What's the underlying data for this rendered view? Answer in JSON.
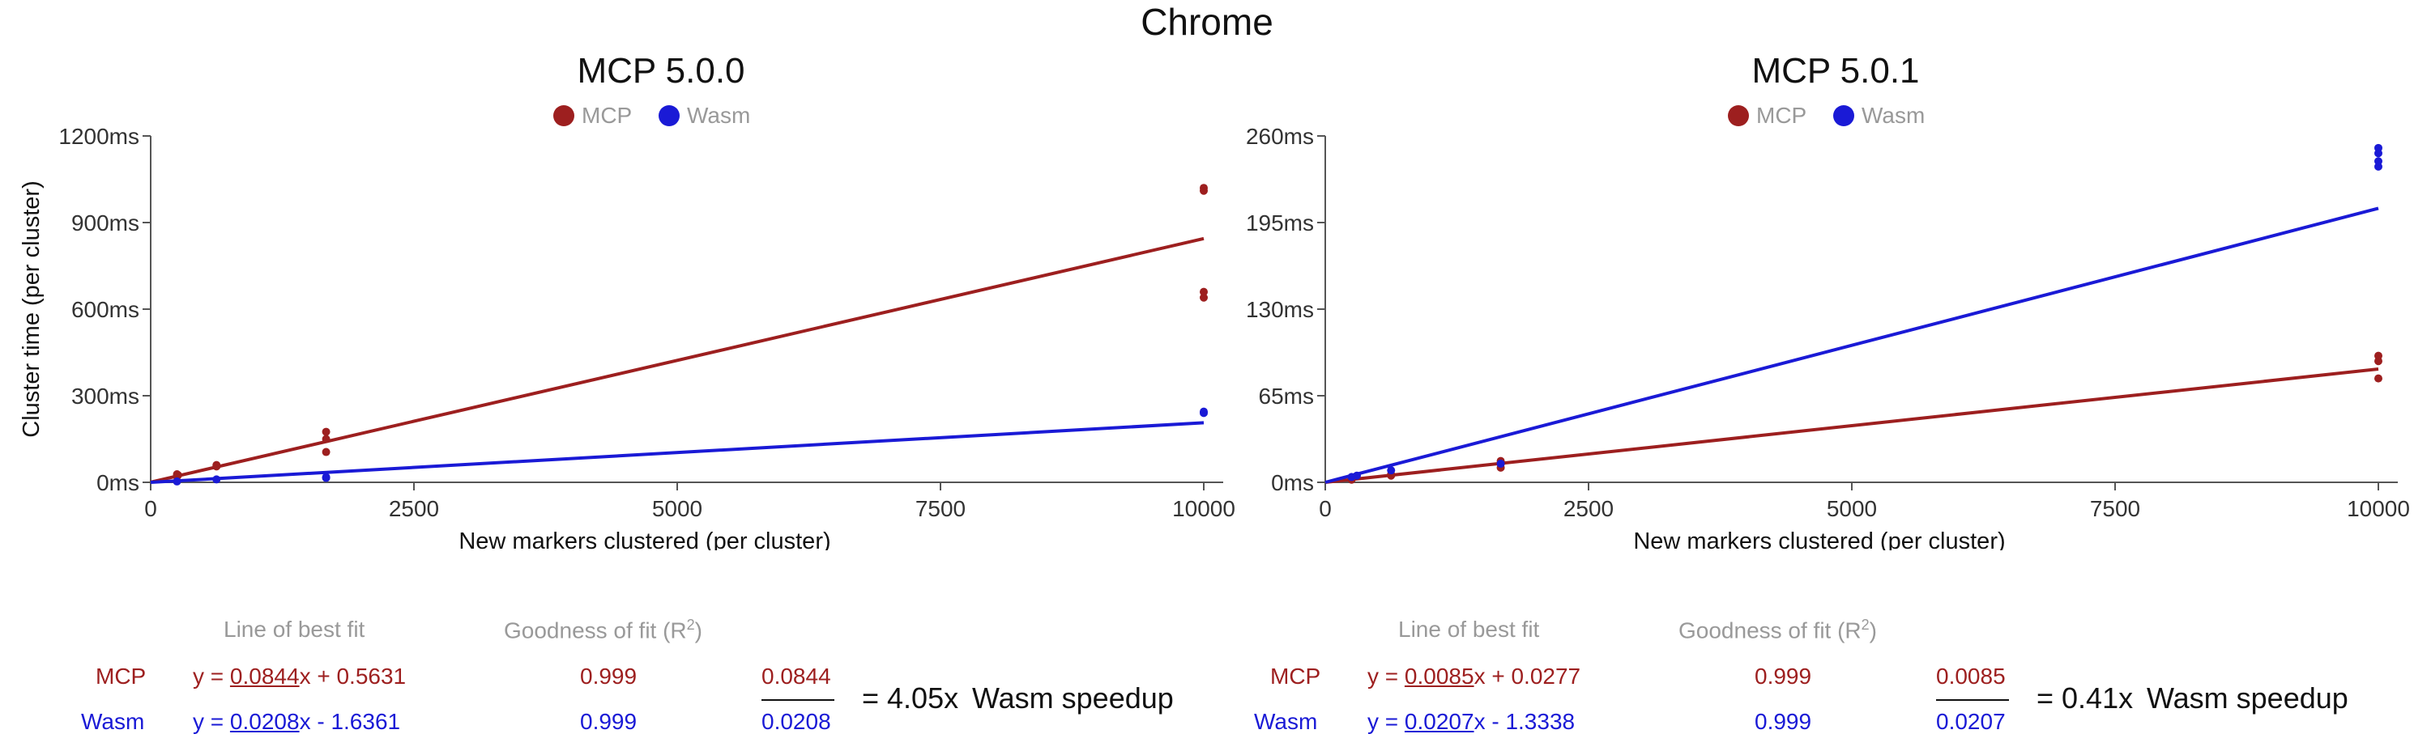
{
  "title": "Chrome",
  "colors": {
    "mcp": "#9d1f1f",
    "wasm": "#1a1ad6",
    "axis": "#555555",
    "header": "#999999"
  },
  "chart_data": [
    {
      "type": "scatter",
      "title": "MCP 5.0.0",
      "legend": {
        "placement": "top-center",
        "entries": [
          "MCP",
          "Wasm"
        ]
      },
      "xlabel": "New markers clustered (per cluster)",
      "ylabel": "Cluster time (per cluster)",
      "xlim": [
        0,
        10000
      ],
      "ylim": [
        0,
        1200
      ],
      "xticks": [
        0,
        2500,
        5000,
        7500,
        10000
      ],
      "yticks": [
        0,
        300,
        600,
        900,
        1200
      ],
      "ytick_labels": [
        "0ms",
        "300ms",
        "600ms",
        "900ms",
        "1200ms"
      ],
      "grid": false,
      "series": [
        {
          "name": "MCP",
          "color": "#9d1f1f",
          "points": [
            [
              250,
              20
            ],
            [
              260,
              25
            ],
            [
              250,
              28
            ],
            [
              625,
              55
            ],
            [
              625,
              60
            ],
            [
              1666,
              105
            ],
            [
              1666,
              150
            ],
            [
              1666,
              175
            ],
            [
              10000,
              640
            ],
            [
              10000,
              660
            ],
            [
              10000,
              1010
            ],
            [
              10000,
              1020
            ]
          ],
          "fit": {
            "slope": 0.0844,
            "intercept": 0.5631
          }
        },
        {
          "name": "Wasm",
          "color": "#1a1ad6",
          "points": [
            [
              250,
              3
            ],
            [
              625,
              10
            ],
            [
              1666,
              15
            ],
            [
              1666,
              18
            ],
            [
              10000,
              240
            ],
            [
              10000,
              245
            ]
          ],
          "fit": {
            "slope": 0.0208,
            "intercept": -1.6361
          }
        }
      ],
      "fit_table": {
        "header_fit": "Line of best fit",
        "header_r2": "Goodness of fit (R",
        "header_r2_sup": "2",
        "header_r2_close": ")",
        "rows": [
          {
            "label": "MCP",
            "eq_prefix": "y = ",
            "slope": "0.0844",
            "eq_suffix": "x + 0.5631",
            "r2": "0.999"
          },
          {
            "label": "Wasm",
            "eq_prefix": "y = ",
            "slope": "0.0208",
            "eq_suffix": "x - 1.6361",
            "r2": "0.999"
          }
        ],
        "numerator": "0.0844",
        "denominator": "0.0208",
        "result": "= 4.05x",
        "result_label": "Wasm speedup"
      }
    },
    {
      "type": "scatter",
      "title": "MCP 5.0.1",
      "legend": {
        "placement": "top-center",
        "entries": [
          "MCP",
          "Wasm"
        ]
      },
      "xlabel": "New markers clustered (per cluster)",
      "ylabel": "",
      "xlim": [
        0,
        10000
      ],
      "ylim": [
        0,
        260
      ],
      "xticks": [
        0,
        2500,
        5000,
        7500,
        10000
      ],
      "yticks": [
        0,
        65,
        130,
        195,
        260
      ],
      "ytick_labels": [
        "0ms",
        "65ms",
        "130ms",
        "195ms",
        "260ms"
      ],
      "grid": false,
      "series": [
        {
          "name": "MCP",
          "color": "#9d1f1f",
          "points": [
            [
              250,
              2
            ],
            [
              625,
              5
            ],
            [
              625,
              6
            ],
            [
              1666,
              11
            ],
            [
              1666,
              14
            ],
            [
              1666,
              16
            ],
            [
              10000,
              78
            ],
            [
              10000,
              91
            ],
            [
              10000,
              95
            ]
          ],
          "fit": {
            "slope": 0.0085,
            "intercept": 0.0277
          }
        },
        {
          "name": "Wasm",
          "color": "#1a1ad6",
          "points": [
            [
              250,
              4
            ],
            [
              300,
              5
            ],
            [
              625,
              9
            ],
            [
              1666,
              14
            ],
            [
              10000,
              237
            ],
            [
              10000,
              241
            ],
            [
              10000,
              247
            ],
            [
              10000,
              251
            ]
          ],
          "fit": {
            "slope": 0.0207,
            "intercept": -1.3338
          }
        }
      ],
      "fit_table": {
        "header_fit": "Line of best fit",
        "header_r2": "Goodness of fit (R",
        "header_r2_sup": "2",
        "header_r2_close": ")",
        "rows": [
          {
            "label": "MCP",
            "eq_prefix": "y = ",
            "slope": "0.0085",
            "eq_suffix": "x + 0.0277",
            "r2": "0.999"
          },
          {
            "label": "Wasm",
            "eq_prefix": "y = ",
            "slope": "0.0207",
            "eq_suffix": "x - 1.3338",
            "r2": "0.999"
          }
        ],
        "numerator": "0.0085",
        "denominator": "0.0207",
        "result": "= 0.41x",
        "result_label": "Wasm speedup"
      }
    }
  ]
}
